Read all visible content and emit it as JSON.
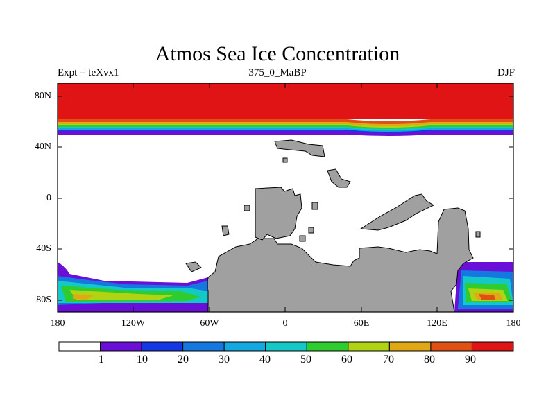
{
  "title": "Atmos Sea Ice Concentration",
  "subtitle_left": "Expt = teXvx1",
  "subtitle_center": "375_0_MaBP",
  "subtitle_right": "DJF",
  "y_axis_labels": [
    "80N",
    "40N",
    "0",
    "40S",
    "80S"
  ],
  "x_axis_labels": [
    "180",
    "120W",
    "60W",
    "0",
    "60E",
    "120E",
    "180"
  ],
  "colorbar": {
    "labels": [
      "1",
      "10",
      "20",
      "30",
      "40",
      "50",
      "60",
      "70",
      "80",
      "90"
    ],
    "colors": [
      "#ffffff",
      "#6a0fd8",
      "#1438e6",
      "#1478e0",
      "#14a8e0",
      "#14c8c8",
      "#2fcc2f",
      "#b0d414",
      "#e0a814",
      "#e05014",
      "#e01414"
    ]
  },
  "colors": {
    "land": "#a0a0a0",
    "ocean_no_ice": "#ffffff",
    "ice_max": "#e01414"
  }
}
